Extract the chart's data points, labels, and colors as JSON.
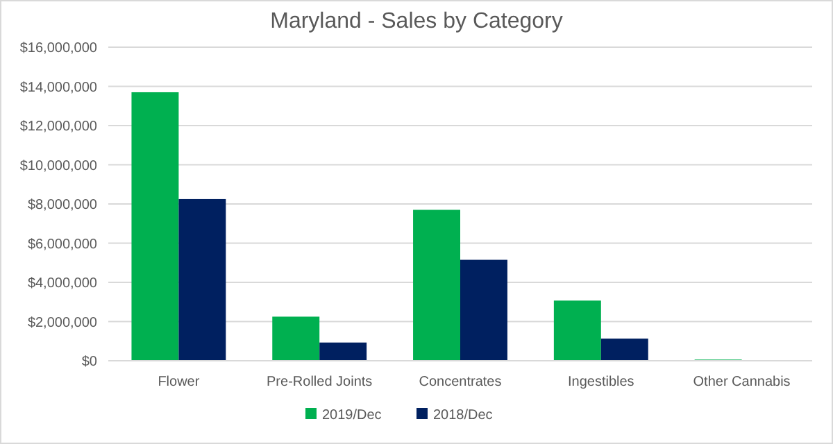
{
  "chart_data": {
    "type": "bar",
    "title": "Maryland - Sales by Category",
    "categories": [
      "Flower",
      "Pre-Rolled Joints",
      "Concentrates",
      "Ingestibles",
      "Other Cannabis"
    ],
    "series": [
      {
        "name": "2019/Dec",
        "color": "#00b050",
        "values": [
          13700000,
          2250000,
          7700000,
          3070000,
          60000
        ]
      },
      {
        "name": "2018/Dec",
        "color": "#002060",
        "values": [
          8250000,
          930000,
          5150000,
          1130000,
          0
        ]
      }
    ],
    "ylim": [
      0,
      16000000
    ],
    "yticks": [
      {
        "value": 0,
        "label": "$0"
      },
      {
        "value": 2000000,
        "label": "$2,000,000"
      },
      {
        "value": 4000000,
        "label": "$4,000,000"
      },
      {
        "value": 6000000,
        "label": "$6,000,000"
      },
      {
        "value": 8000000,
        "label": "$8,000,000"
      },
      {
        "value": 10000000,
        "label": "$10,000,000"
      },
      {
        "value": 12000000,
        "label": "$12,000,000"
      },
      {
        "value": 14000000,
        "label": "$14,000,000"
      },
      {
        "value": 16000000,
        "label": "$16,000,000"
      }
    ],
    "grid": "y",
    "legend": "bottom"
  }
}
